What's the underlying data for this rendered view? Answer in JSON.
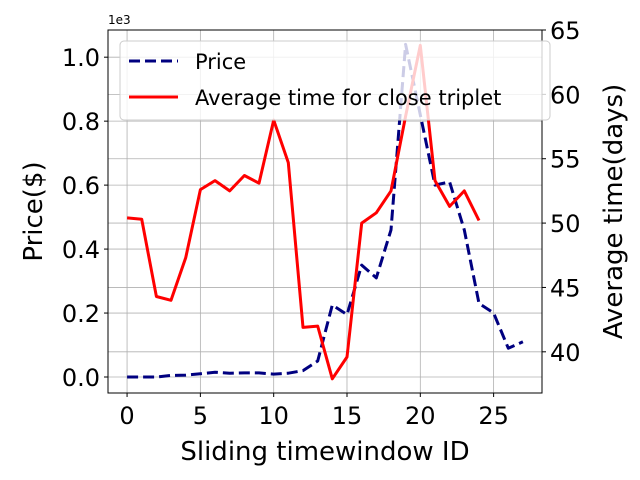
{
  "chart_data": {
    "type": "line",
    "xlabel": "Sliding timewindow ID",
    "ylabel": "Price($)",
    "y2label": "Average time(days)",
    "y_scale_note": "1e3",
    "xlim": [
      -1.3,
      28.3
    ],
    "ylim": [
      -0.05,
      1.085
    ],
    "y2lim": [
      36.8,
      65.0
    ],
    "xticks": [
      0,
      5,
      10,
      15,
      20,
      25
    ],
    "yticks": [
      0.0,
      0.2,
      0.4,
      0.6,
      0.8,
      1.0
    ],
    "ytick_labels": [
      "0.0",
      "0.2",
      "0.4",
      "0.6",
      "0.8",
      "1.0"
    ],
    "y2ticks": [
      40,
      45,
      50,
      55,
      60,
      65
    ],
    "grid": true,
    "legend_position": "top-left",
    "series": [
      {
        "name": "Price",
        "axis": "left",
        "color": "#000080",
        "style": "dashed",
        "x": [
          0,
          1,
          2,
          3,
          4,
          5,
          6,
          7,
          8,
          9,
          10,
          11,
          12,
          13,
          14,
          15,
          16,
          17,
          18,
          19,
          20,
          21,
          22,
          23,
          24,
          25,
          26,
          27
        ],
        "values": [
          0.0,
          0.0,
          0.0,
          0.005,
          0.006,
          0.01,
          0.015,
          0.012,
          0.013,
          0.013,
          0.009,
          0.012,
          0.02,
          0.05,
          0.225,
          0.195,
          0.35,
          0.31,
          0.46,
          1.04,
          0.82,
          0.6,
          0.61,
          0.46,
          0.23,
          0.2,
          0.09,
          0.11
        ]
      },
      {
        "name": "Average time for close triplet",
        "axis": "right",
        "color": "#ff0000",
        "style": "solid",
        "x": [
          0,
          1,
          2,
          3,
          4,
          5,
          6,
          7,
          8,
          9,
          10,
          11,
          12,
          13,
          14,
          15,
          16,
          17,
          18,
          19,
          20,
          21,
          22,
          23,
          24
        ],
        "values": [
          50.4,
          50.3,
          44.3,
          44.0,
          47.3,
          52.6,
          53.3,
          52.5,
          53.7,
          53.1,
          58.0,
          54.7,
          41.9,
          42.0,
          37.9,
          39.6,
          50.0,
          50.8,
          52.5,
          58.3,
          63.8,
          53.3,
          51.3,
          52.5,
          50.2
        ]
      }
    ]
  }
}
